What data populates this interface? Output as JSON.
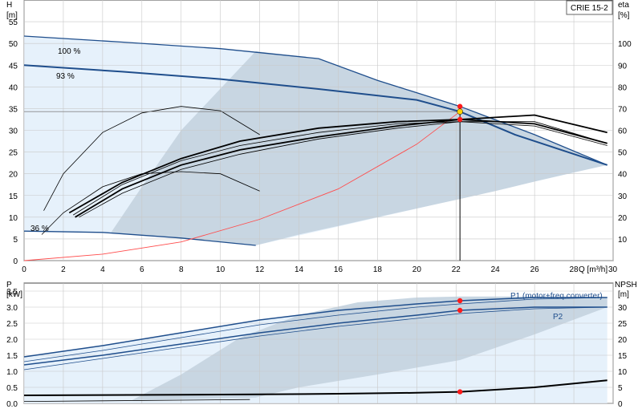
{
  "model": "CRIE 15-2",
  "colors": {
    "region_light": "#e6f1fb",
    "region_dark": "#c8d6e2",
    "curve_blue": "#1f4e8c",
    "system_curve": "#ff4d4d",
    "grid": "#c8c8c8",
    "point": "#ff1a1a"
  },
  "chart_data": [
    {
      "type": "line",
      "title": "",
      "xlabel": "Q [m³/h]",
      "ylabel_left": "H [m]",
      "ylabel_right": "eta [%]",
      "xlim": [
        0,
        30
      ],
      "ylim_left": [
        0,
        60
      ],
      "ylim_right": [
        0,
        120
      ],
      "x_ticks": [
        0,
        2,
        4,
        6,
        8,
        10,
        12,
        14,
        16,
        18,
        20,
        22,
        24,
        26,
        28,
        30
      ],
      "y_ticks_left": [
        0,
        5,
        10,
        15,
        20,
        25,
        30,
        35,
        40,
        45,
        50,
        55
      ],
      "y_ticks_right": [
        10,
        20,
        30,
        40,
        50,
        60,
        70,
        80,
        90,
        100
      ],
      "grid": true,
      "curve_labels": [
        "100 %",
        "93 %",
        "36 %"
      ],
      "series": [
        {
          "name": "100 %",
          "x": [
            0,
            5,
            10,
            15,
            18,
            22.2,
            26,
            29.7
          ],
          "y": [
            51.7,
            50.3,
            48.8,
            46.5,
            41.5,
            35.5,
            29.0,
            22.0
          ]
        },
        {
          "name": "93 %",
          "x": [
            0,
            5,
            10,
            15,
            20,
            22.2,
            25,
            29.7
          ],
          "y": [
            45.0,
            43.5,
            41.8,
            39.5,
            37.0,
            34.3,
            29.0,
            22.0
          ]
        },
        {
          "name": "36 %",
          "x": [
            0,
            4,
            8,
            11.8
          ],
          "y": [
            6.8,
            6.5,
            5.2,
            3.5
          ]
        },
        {
          "name": "",
          "x": [
            0,
            4,
            8,
            12,
            16,
            20,
            22.2
          ],
          "y": [
            0,
            1.5,
            4.3,
            9.5,
            16.5,
            26.8,
            34.3
          ]
        }
      ],
      "efficiency_curves": [
        {
          "x": [
            2.3,
            5,
            8,
            11,
            15,
            19,
            22.2,
            26,
            29.7
          ],
          "eta": [
            22,
            36,
            47,
            55,
            61,
            64,
            65,
            63,
            54
          ]
        },
        {
          "x": [
            2.5,
            5,
            8,
            11,
            15,
            19,
            22.2,
            26,
            29.7
          ],
          "eta": [
            21,
            35,
            46,
            53,
            59,
            63,
            64,
            62,
            53
          ]
        },
        {
          "x": [
            2.6,
            5,
            8,
            11,
            15,
            19,
            22.2,
            26,
            29.7
          ],
          "eta": [
            20,
            33,
            44,
            51,
            57,
            62,
            65,
            67,
            59
          ]
        },
        {
          "x": [
            2.8,
            5,
            8,
            11,
            15,
            19,
            22.2,
            26,
            29.7
          ],
          "eta": [
            20,
            31,
            42,
            49,
            56,
            61,
            64,
            64,
            54
          ]
        },
        {
          "x": [
            1,
            2,
            4,
            6,
            8,
            10,
            12
          ],
          "eta": [
            23,
            40,
            59,
            68,
            71,
            69,
            58
          ]
        },
        {
          "x": [
            0.9,
            2,
            4,
            6,
            8,
            10,
            12
          ],
          "eta": [
            12,
            22,
            34,
            40,
            41,
            40,
            32
          ]
        }
      ],
      "operating_point": {
        "q": 22.2,
        "h": 34.3,
        "eta_top": 71,
        "eta_mid": 65
      }
    },
    {
      "type": "line",
      "title": "",
      "xlabel": "",
      "ylabel_left": "P [kW]",
      "ylabel_right": "NPSH [m]",
      "xlim": [
        0,
        30
      ],
      "ylim_left": [
        0,
        3.75
      ],
      "ylim_right": [
        0,
        37.5
      ],
      "y_ticks_left": [
        0,
        0.5,
        1.0,
        1.5,
        2.0,
        2.5,
        3.0,
        3.5
      ],
      "y_ticks_left_labels": [
        "0.0",
        "0.5",
        "1.0",
        "1.5",
        "2.0",
        "2.5",
        "3.0",
        "3.5"
      ],
      "y_ticks_right": [
        0,
        5,
        10,
        15,
        20,
        25,
        30
      ],
      "grid": true,
      "series_labels": [
        "P1 (motor+freq.converter)",
        "P2"
      ],
      "series": [
        {
          "name": "P1 (motor+freq.converter)",
          "x": [
            0,
            4,
            8,
            12,
            16,
            20,
            22.2,
            26,
            29.7
          ],
          "y": [
            1.45,
            1.8,
            2.2,
            2.6,
            2.9,
            3.1,
            3.2,
            3.3,
            3.3
          ]
        },
        {
          "name": "P2",
          "x": [
            0,
            4,
            8,
            12,
            16,
            20,
            22.2,
            26,
            29.7
          ],
          "y": [
            1.2,
            1.5,
            1.85,
            2.2,
            2.5,
            2.75,
            2.9,
            3.0,
            3.0
          ]
        },
        {
          "name": "",
          "x": [
            0,
            4,
            8,
            12,
            16,
            20,
            22.2,
            26,
            29.7
          ],
          "y": [
            1.3,
            1.65,
            2.05,
            2.45,
            2.75,
            3.0,
            3.1,
            3.25,
            3.3
          ]
        },
        {
          "name": "",
          "x": [
            0,
            4,
            8,
            12,
            16,
            20,
            22.2,
            26,
            29.7
          ],
          "y": [
            1.05,
            1.4,
            1.75,
            2.1,
            2.4,
            2.65,
            2.8,
            2.95,
            3.0
          ]
        },
        {
          "name": "",
          "x": [
            0,
            4,
            8,
            12,
            16,
            20,
            22.2,
            26,
            29.7
          ],
          "y": [
            0.25,
            0.26,
            0.27,
            0.28,
            0.3,
            0.33,
            0.36,
            0.5,
            0.72
          ]
        },
        {
          "name": "",
          "x": [
            0,
            4,
            8,
            11.5
          ],
          "y": [
            0.06,
            0.08,
            0.1,
            0.12
          ]
        }
      ],
      "operating_points": [
        {
          "q": 22.2,
          "p": 3.2
        },
        {
          "q": 22.2,
          "p": 2.9
        },
        {
          "q": 22.2,
          "p": 0.36
        }
      ]
    }
  ]
}
